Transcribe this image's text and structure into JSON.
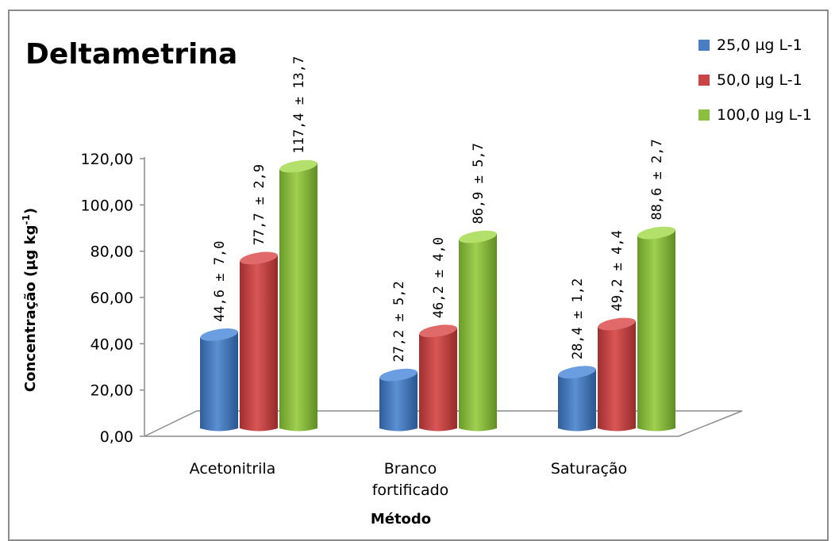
{
  "chart_data": {
    "type": "bar",
    "title": "Deltametrina",
    "xlabel": "Método",
    "ylabel_main": "Concentração (µg kg",
    "ylabel_sup": "-1",
    "ylabel_end": ")",
    "ylim": [
      0,
      120
    ],
    "yticks": [
      "0,00",
      "20,00",
      "40,00",
      "60,00",
      "80,00",
      "100,00",
      "120,00"
    ],
    "categories": [
      [
        "Acetonitrila"
      ],
      [
        "Branco",
        "fortificado"
      ],
      [
        "Saturação"
      ]
    ],
    "series": [
      {
        "name": "25,0 µg L-1",
        "color": "#4a7ec2",
        "values": [
          44.6,
          27.2,
          28.4
        ],
        "labels": [
          "44,6 ± 7,0",
          "27,2 ± 5,2",
          "28,4 ± 1,2"
        ]
      },
      {
        "name": "50,0 µg L-1",
        "color": "#c94545",
        "values": [
          77.7,
          46.2,
          49.2
        ],
        "labels": [
          "77,7 ± 2,9",
          "46,2 ± 4,0",
          "49,2 ± 4,4"
        ]
      },
      {
        "name": "100,0 µg L-1",
        "color": "#8cbf3f",
        "values": [
          117.4,
          86.9,
          88.6
        ],
        "labels": [
          "117,4 ± 13,7",
          "86,9 ± 5,7",
          "88,6 ± 2,7"
        ]
      }
    ],
    "grid": false,
    "legend_position": "top-right"
  }
}
